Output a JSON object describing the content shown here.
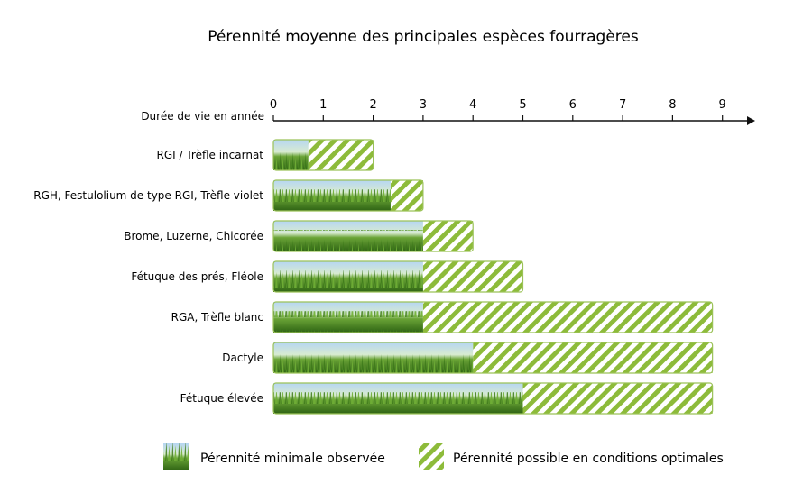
{
  "chart_data": {
    "type": "bar",
    "orientation": "horizontal",
    "stacked": true,
    "title": "Pérennité moyenne des principales espèces fourragères",
    "xlabel": "Durée de vie en année",
    "xlim": [
      0,
      9.5
    ],
    "x_ticks": [
      0,
      1,
      2,
      3,
      4,
      5,
      6,
      7,
      8,
      9
    ],
    "categories": [
      "RGI / Trèfle incarnat",
      "RGH, Festulolium de type RGI, Trèfle violet",
      "Brome, Luzerne, Chicorée",
      "Fétuque des prés, Fléole",
      "RGA, Trèfle blanc",
      "Dactyle",
      "Fétuque élevée"
    ],
    "series": [
      {
        "name": "Pérennité minimale observée",
        "values": [
          0.7,
          2.35,
          3,
          3,
          3,
          4,
          5
        ],
        "style": "grass-photo"
      },
      {
        "name": "Pérennité possible en conditions optimales",
        "values": [
          1.3,
          0.65,
          1,
          2,
          5.8,
          4.8,
          3.8
        ],
        "style": "diagonal-stripes"
      }
    ],
    "grid": false,
    "legend_position": "bottom",
    "colors": {
      "stripe": "#8dbb3a",
      "sky_top": "#a9cdef",
      "grass": "#4f8d24",
      "grass_dark": "#2f6414",
      "border": "#9bc258"
    }
  }
}
